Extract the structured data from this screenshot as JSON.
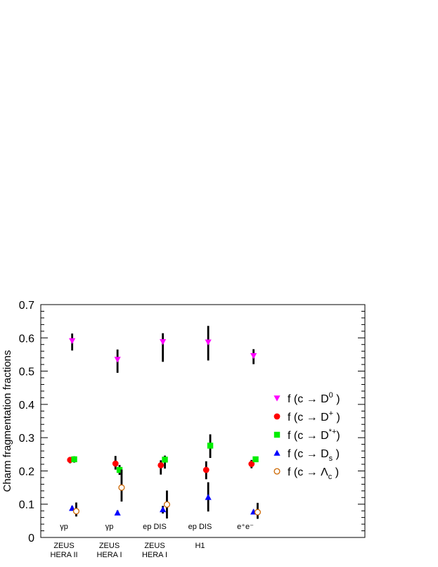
{
  "chart_data": {
    "type": "scatter",
    "title": "",
    "ylabel": "Charm fragmentation fractions",
    "xlabel": "",
    "ylim": [
      0,
      0.7
    ],
    "yticks": [
      "0",
      "0.1",
      "0.2",
      "0.3",
      "0.4",
      "0.5",
      "0.6",
      "0.7"
    ],
    "grid": false,
    "legend_position": "right",
    "measurements": [
      {
        "process": "γp",
        "experiment": [
          "ZEUS",
          "HERA II"
        ]
      },
      {
        "process": "γp",
        "experiment": [
          "ZEUS",
          "HERA I"
        ]
      },
      {
        "process": "ep DIS",
        "experiment": [
          "ZEUS",
          "HERA I"
        ]
      },
      {
        "process": "ep DIS",
        "experiment": [
          "H1"
        ]
      },
      {
        "process": "e⁺e⁻",
        "experiment": []
      }
    ],
    "series": [
      {
        "name": "D0",
        "legend": {
          "pre": "f (c → D",
          "sup": "0",
          "sub": "",
          "post": " )"
        },
        "marker": "triangle-down",
        "color": "#ff00ff",
        "offset": -0.29,
        "values": [
          0.591,
          0.535,
          0.588,
          0.587,
          0.546
        ],
        "err_lo": [
          0.029,
          0.04,
          0.06,
          0.055,
          0.025
        ],
        "err_hi": [
          0.022,
          0.03,
          0.026,
          0.049,
          0.02
        ]
      },
      {
        "name": "D+",
        "legend": {
          "pre": "f (c → D",
          "sup": "+",
          "sub": "",
          "post": " )"
        },
        "marker": "circle",
        "color": "#ff0000",
        "offset": -0.38,
        "values": [
          0.233,
          0.222,
          0.217,
          0.203,
          0.221
        ],
        "err_lo": [
          0.01,
          0.018,
          0.028,
          0.028,
          0.013
        ],
        "err_hi": [
          0.009,
          0.023,
          0.015,
          0.026,
          0.012
        ]
      },
      {
        "name": "D*+",
        "legend": {
          "pre": "f (c → D",
          "sup": "*+",
          "sub": "",
          "post": ")"
        },
        "marker": "square",
        "color": "#00ee00",
        "offset": -0.2,
        "values": [
          0.235,
          0.203,
          0.234,
          0.276,
          0.235
        ],
        "err_lo": [
          0.01,
          0.015,
          0.027,
          0.037,
          0.007
        ],
        "err_hi": [
          0.009,
          0.015,
          0.012,
          0.034,
          0.007
        ]
      },
      {
        "name": "Ds",
        "legend": {
          "pre": "f (c → D",
          "sup": "",
          "sub": "s",
          "post": " )"
        },
        "marker": "triangle-up",
        "color": "#0000ff",
        "offset": -0.29,
        "values": [
          0.088,
          0.074,
          0.084,
          0.121,
          0.077
        ],
        "err_lo": [
          0.007,
          0.007,
          0.012,
          0.043,
          0.006
        ],
        "err_hi": [
          0.007,
          0.007,
          0.011,
          0.045,
          0.006
        ]
      },
      {
        "name": "Λc",
        "legend": {
          "pre": "f (c → Λ",
          "sup": "",
          "sub": "c",
          "post": " )"
        },
        "marker": "circle-open",
        "color": "#cc6600",
        "offset": -0.11,
        "values": [
          0.079,
          0.15,
          0.099,
          null,
          0.076
        ],
        "err_lo": [
          0.016,
          0.042,
          0.042,
          0,
          0.02
        ],
        "err_hi": [
          0.026,
          0.054,
          0.042,
          0,
          0.028
        ]
      }
    ]
  }
}
